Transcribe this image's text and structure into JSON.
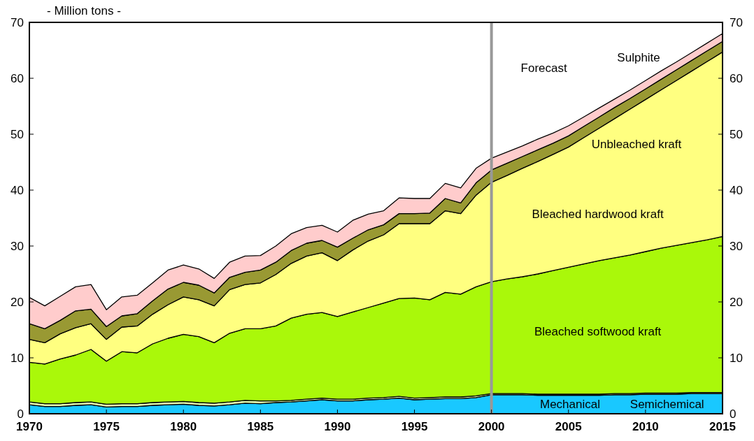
{
  "chart_data": {
    "type": "area",
    "stacked": true,
    "ylabel": "- Million tons -",
    "x": [
      1970,
      1971,
      1972,
      1973,
      1974,
      1975,
      1976,
      1977,
      1978,
      1979,
      1980,
      1981,
      1982,
      1983,
      1984,
      1985,
      1986,
      1987,
      1988,
      1989,
      1990,
      1991,
      1992,
      1993,
      1994,
      1995,
      1996,
      1997,
      1998,
      1999,
      2000,
      2001,
      2002,
      2003,
      2004,
      2005,
      2006,
      2007,
      2008,
      2009,
      2010,
      2011,
      2012,
      2013,
      2014,
      2015
    ],
    "xlim": [
      1970,
      2015
    ],
    "xticks": [
      1970,
      1975,
      1980,
      1985,
      1990,
      1995,
      2000,
      2005,
      2010,
      2015
    ],
    "ylim": [
      0,
      70
    ],
    "yticks": [
      0,
      10,
      20,
      30,
      40,
      50,
      60,
      70
    ],
    "y2lim": [
      0,
      70
    ],
    "y2ticks": [
      0,
      10,
      20,
      30,
      40,
      50,
      60,
      70
    ],
    "ref_lines": [
      {
        "axis": "x",
        "value": 2000,
        "label": "Forecast",
        "color": "#999999"
      }
    ],
    "series": [
      {
        "name": "Mechanical",
        "color": "#19c8ff",
        "values": [
          1.6,
          1.3,
          1.3,
          1.5,
          1.6,
          1.2,
          1.3,
          1.3,
          1.5,
          1.6,
          1.7,
          1.5,
          1.4,
          1.6,
          1.9,
          1.8,
          2.0,
          2.1,
          2.3,
          2.5,
          2.3,
          2.3,
          2.5,
          2.6,
          2.8,
          2.5,
          2.6,
          2.7,
          2.7,
          2.9,
          3.4,
          3.4,
          3.4,
          3.3,
          3.3,
          3.3,
          3.3,
          3.3,
          3.4,
          3.4,
          3.5,
          3.5,
          3.5,
          3.6,
          3.6,
          3.6
        ]
      },
      {
        "name": "Semichemical",
        "color": "#e6ffb3",
        "values": [
          0.5,
          0.5,
          0.5,
          0.5,
          0.5,
          0.5,
          0.5,
          0.5,
          0.5,
          0.5,
          0.5,
          0.5,
          0.5,
          0.5,
          0.5,
          0.5,
          0.3,
          0.3,
          0.3,
          0.3,
          0.3,
          0.3,
          0.3,
          0.3,
          0.3,
          0.3,
          0.3,
          0.3,
          0.3,
          0.3,
          0.2,
          0.2,
          0.2,
          0.2,
          0.2,
          0.2,
          0.2,
          0.2,
          0.2,
          0.2,
          0.2,
          0.2,
          0.2,
          0.2,
          0.2,
          0.2
        ]
      },
      {
        "name": "Bleached softwood kraft",
        "color": "#aaf80a",
        "values": [
          7.1,
          7.1,
          8.0,
          8.5,
          9.4,
          7.7,
          9.3,
          9.1,
          10.5,
          11.4,
          12.0,
          11.8,
          10.8,
          12.3,
          12.8,
          12.9,
          13.4,
          14.7,
          15.2,
          15.3,
          14.8,
          15.6,
          16.2,
          16.9,
          17.5,
          17.9,
          17.5,
          18.7,
          18.4,
          19.5,
          20.0,
          20.5,
          20.9,
          21.5,
          22.1,
          22.7,
          23.3,
          23.9,
          24.3,
          24.8,
          25.3,
          25.9,
          26.4,
          26.8,
          27.3,
          27.9
        ]
      },
      {
        "name": "Bleached hardwood kraft",
        "color": "#ffff80",
        "values": [
          4.1,
          3.8,
          4.5,
          4.9,
          4.6,
          3.9,
          4.4,
          4.8,
          5.3,
          6.0,
          6.7,
          6.6,
          6.6,
          7.8,
          7.9,
          8.2,
          9.2,
          9.8,
          10.4,
          10.7,
          10.0,
          11.1,
          11.9,
          12.2,
          13.4,
          13.3,
          13.6,
          14.6,
          14.4,
          16.4,
          17.8,
          18.5,
          19.4,
          20.1,
          20.8,
          21.5,
          22.6,
          23.7,
          24.9,
          26.1,
          27.2,
          28.3,
          29.5,
          30.7,
          31.9,
          33.0
        ]
      },
      {
        "name": "Unbleached kraft",
        "color": "#999933",
        "values": [
          2.8,
          2.5,
          2.4,
          3.0,
          2.6,
          2.3,
          2.0,
          2.2,
          2.4,
          2.8,
          2.6,
          2.6,
          2.3,
          2.2,
          2.2,
          2.3,
          2.2,
          2.3,
          2.3,
          2.2,
          2.4,
          2.1,
          2.0,
          1.8,
          1.8,
          1.8,
          1.9,
          2.2,
          1.9,
          2.2,
          2.2,
          2.2,
          2.1,
          2.1,
          2.0,
          2.0,
          2.0,
          2.0,
          2.0,
          1.9,
          1.9,
          1.9,
          1.9,
          1.9,
          1.9,
          1.9
        ]
      },
      {
        "name": "Sulphite",
        "color": "#ffcccc",
        "values": [
          4.7,
          4.1,
          4.3,
          4.3,
          4.4,
          3.0,
          3.4,
          3.3,
          3.2,
          3.4,
          3.1,
          2.9,
          2.6,
          2.7,
          2.9,
          2.6,
          2.9,
          3.0,
          2.8,
          2.7,
          2.7,
          3.2,
          2.8,
          2.5,
          2.8,
          2.7,
          2.6,
          2.7,
          2.7,
          2.6,
          2.1,
          2.0,
          1.9,
          1.9,
          1.8,
          1.8,
          1.7,
          1.6,
          1.5,
          1.5,
          1.5,
          1.5,
          1.4,
          1.4,
          1.4,
          1.4
        ]
      }
    ]
  }
}
